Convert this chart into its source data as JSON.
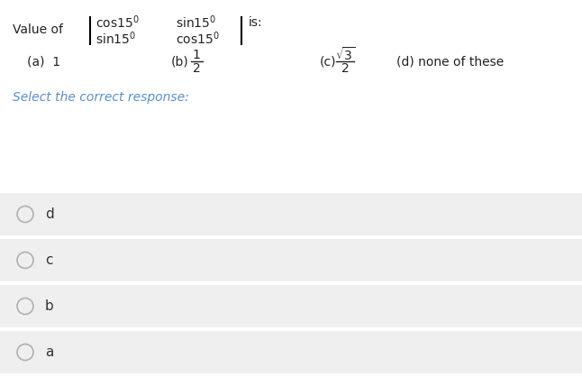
{
  "bg_color": "#ffffff",
  "option_bg_color": "#efefef",
  "question_text_color": "#222222",
  "select_text_color": "#5b8fc9",
  "option_text_color": "#333333",
  "fig_width": 6.46,
  "fig_height": 4.18,
  "dpi": 100,
  "options": [
    "a",
    "b",
    "c",
    "d"
  ],
  "select_label": "Select the correct response:"
}
